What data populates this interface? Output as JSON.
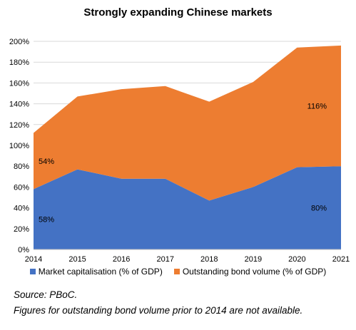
{
  "chart_data": {
    "type": "area",
    "title": "Strongly expanding Chinese markets",
    "stacked": true,
    "x": [
      "2014",
      "2015",
      "2016",
      "2017",
      "2018",
      "2019",
      "2020",
      "2021"
    ],
    "series": [
      {
        "name": "Market capitalisation (% of GDP)",
        "color": "#4472C4",
        "values": [
          58,
          77,
          68,
          68,
          47,
          60,
          79,
          80
        ]
      },
      {
        "name": "Outstanding bond volume (% of GDP)",
        "color": "#ED7D31",
        "values": [
          54,
          70,
          86,
          89,
          95,
          101,
          115,
          116
        ]
      }
    ],
    "ylim": [
      0,
      200
    ],
    "yticks": [
      "0%",
      "20%",
      "40%",
      "60%",
      "80%",
      "100%",
      "120%",
      "140%",
      "160%",
      "180%",
      "200%"
    ],
    "grid": true,
    "legend_position": "bottom",
    "data_labels": [
      {
        "text": "54%",
        "series": 1,
        "x": "2014"
      },
      {
        "text": "58%",
        "series": 0,
        "x": "2014"
      },
      {
        "text": "116%",
        "series": 1,
        "x": "2021"
      },
      {
        "text": "80%",
        "series": 0,
        "x": "2021"
      }
    ]
  },
  "notes": {
    "source": "Source: PBoC.",
    "footnote": "Figures for outstanding bond volume prior to 2014 are not available."
  }
}
